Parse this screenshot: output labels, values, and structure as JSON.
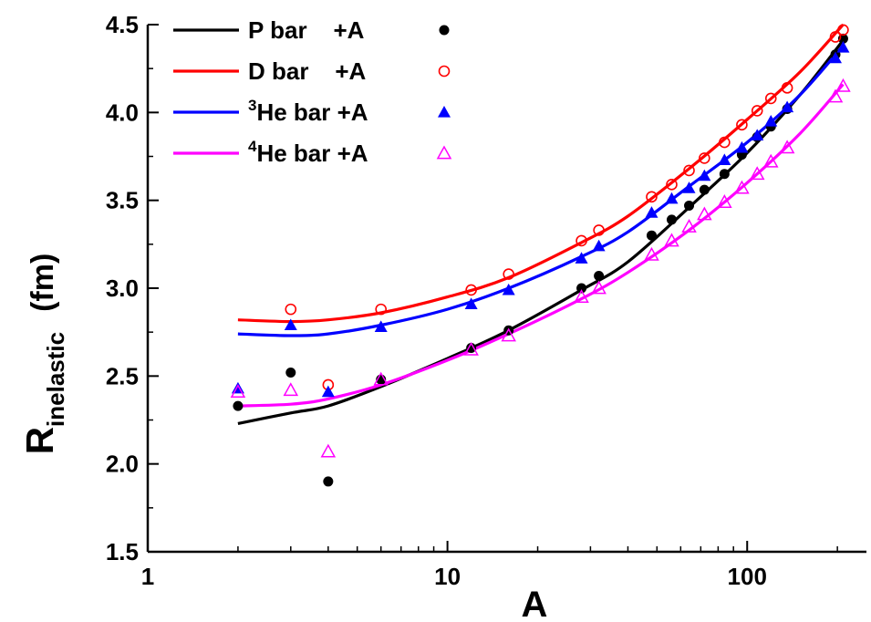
{
  "chart_data": {
    "type": "line",
    "xscale": "log",
    "xlim": [
      1,
      250
    ],
    "ylim": [
      1.5,
      4.5
    ],
    "xticks": [
      1,
      10,
      100
    ],
    "xtick_labels": [
      "1",
      "10",
      "100"
    ],
    "yticks": [
      1.5,
      2.0,
      2.5,
      3.0,
      3.5,
      4.0,
      4.5
    ],
    "ytick_labels": [
      "1.5",
      "2.0",
      "2.5",
      "3.0",
      "3.5",
      "4.0",
      "4.5"
    ],
    "xlabel": "A",
    "ylabel": {
      "main": "R",
      "sub": "inelastic",
      "unit": "(fm)"
    },
    "legend_position": "top-left",
    "series": [
      {
        "name": "P bar +A",
        "legend": {
          "pre": "",
          "sup": "",
          "text": "P bar    +A"
        },
        "color": "#000000",
        "marker": "filled-circle",
        "curve": [
          [
            2,
            2.23
          ],
          [
            3,
            2.29
          ],
          [
            4,
            2.33
          ],
          [
            6,
            2.44
          ],
          [
            10,
            2.6
          ],
          [
            16,
            2.76
          ],
          [
            28,
            2.99
          ],
          [
            40,
            3.15
          ],
          [
            64,
            3.46
          ],
          [
            100,
            3.77
          ],
          [
            150,
            4.1
          ],
          [
            209,
            4.41
          ]
        ],
        "points": [
          [
            2,
            2.33
          ],
          [
            3,
            2.52
          ],
          [
            4,
            1.9
          ],
          [
            6,
            2.48
          ],
          [
            12,
            2.66
          ],
          [
            16,
            2.76
          ],
          [
            28,
            3.0
          ],
          [
            32,
            3.07
          ],
          [
            48,
            3.3
          ],
          [
            56,
            3.39
          ],
          [
            64,
            3.47
          ],
          [
            72,
            3.56
          ],
          [
            84,
            3.65
          ],
          [
            96,
            3.76
          ],
          [
            108,
            3.86
          ],
          [
            120,
            3.92
          ],
          [
            136,
            4.02
          ],
          [
            197,
            4.33
          ],
          [
            209,
            4.42
          ]
        ]
      },
      {
        "name": "D bar +A",
        "legend": {
          "pre": "",
          "sup": "",
          "text": "D bar    +A"
        },
        "color": "#ff0000",
        "marker": "open-circle",
        "curve": [
          [
            2,
            2.82
          ],
          [
            3,
            2.81
          ],
          [
            4,
            2.82
          ],
          [
            6,
            2.86
          ],
          [
            10,
            2.95
          ],
          [
            16,
            3.06
          ],
          [
            28,
            3.26
          ],
          [
            40,
            3.41
          ],
          [
            64,
            3.68
          ],
          [
            100,
            3.96
          ],
          [
            150,
            4.23
          ],
          [
            209,
            4.5
          ]
        ],
        "points": [
          [
            3,
            2.88
          ],
          [
            4,
            2.45
          ],
          [
            6,
            2.88
          ],
          [
            12,
            2.99
          ],
          [
            16,
            3.08
          ],
          [
            28,
            3.27
          ],
          [
            32,
            3.33
          ],
          [
            48,
            3.52
          ],
          [
            56,
            3.59
          ],
          [
            64,
            3.67
          ],
          [
            72,
            3.74
          ],
          [
            84,
            3.83
          ],
          [
            96,
            3.93
          ],
          [
            108,
            4.01
          ],
          [
            120,
            4.08
          ],
          [
            136,
            4.14
          ],
          [
            197,
            4.43
          ],
          [
            209,
            4.47
          ]
        ]
      },
      {
        "name": "3He bar +A",
        "legend": {
          "pre": "",
          "sup": "3",
          "text": "He bar +A"
        },
        "color": "#0000ff",
        "marker": "filled-triangle",
        "curve": [
          [
            2,
            2.74
          ],
          [
            3,
            2.73
          ],
          [
            4,
            2.74
          ],
          [
            6,
            2.79
          ],
          [
            10,
            2.88
          ],
          [
            16,
            3.0
          ],
          [
            28,
            3.18
          ],
          [
            40,
            3.32
          ],
          [
            64,
            3.58
          ],
          [
            100,
            3.83
          ],
          [
            150,
            4.1
          ],
          [
            209,
            4.38
          ]
        ],
        "points": [
          [
            2,
            2.43
          ],
          [
            3,
            2.79
          ],
          [
            4,
            2.41
          ],
          [
            6,
            2.78
          ],
          [
            12,
            2.91
          ],
          [
            16,
            2.99
          ],
          [
            28,
            3.17
          ],
          [
            32,
            3.24
          ],
          [
            48,
            3.43
          ],
          [
            56,
            3.51
          ],
          [
            64,
            3.57
          ],
          [
            72,
            3.64
          ],
          [
            84,
            3.73
          ],
          [
            96,
            3.8
          ],
          [
            108,
            3.87
          ],
          [
            120,
            3.95
          ],
          [
            136,
            4.03
          ],
          [
            197,
            4.31
          ],
          [
            209,
            4.37
          ]
        ]
      },
      {
        "name": "4He bar +A",
        "legend": {
          "pre": "",
          "sup": "4",
          "text": "He bar +A"
        },
        "color": "#ff00ff",
        "marker": "open-triangle",
        "curve": [
          [
            2,
            2.33
          ],
          [
            3,
            2.34
          ],
          [
            4,
            2.37
          ],
          [
            6,
            2.45
          ],
          [
            10,
            2.59
          ],
          [
            16,
            2.74
          ],
          [
            28,
            2.94
          ],
          [
            40,
            3.09
          ],
          [
            64,
            3.33
          ],
          [
            100,
            3.6
          ],
          [
            150,
            3.88
          ],
          [
            209,
            4.16
          ]
        ],
        "points": [
          [
            2,
            2.41
          ],
          [
            3,
            2.42
          ],
          [
            4,
            2.07
          ],
          [
            6,
            2.48
          ],
          [
            12,
            2.65
          ],
          [
            16,
            2.73
          ],
          [
            28,
            2.95
          ],
          [
            32,
            3.0
          ],
          [
            48,
            3.19
          ],
          [
            56,
            3.27
          ],
          [
            64,
            3.35
          ],
          [
            72,
            3.42
          ],
          [
            84,
            3.49
          ],
          [
            96,
            3.57
          ],
          [
            108,
            3.65
          ],
          [
            120,
            3.72
          ],
          [
            136,
            3.8
          ],
          [
            197,
            4.09
          ],
          [
            209,
            4.15
          ]
        ]
      }
    ]
  }
}
